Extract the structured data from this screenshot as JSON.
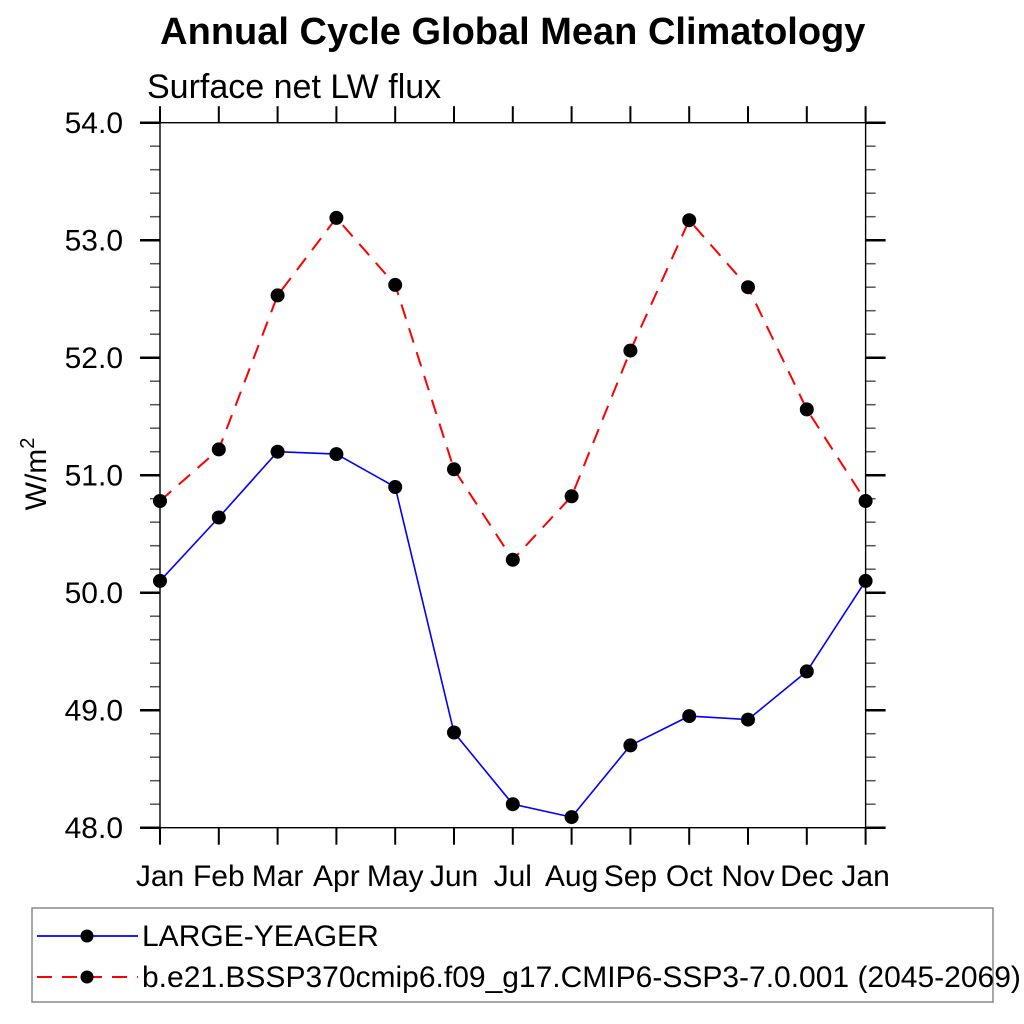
{
  "chart_data": {
    "type": "line",
    "title": "Annual Cycle Global Mean Climatology",
    "subtitle": "Surface net LW flux",
    "ylabel_base": "W/m",
    "ylabel_exp": "2",
    "categories": [
      "Jan",
      "Feb",
      "Mar",
      "Apr",
      "May",
      "Jun",
      "Jul",
      "Aug",
      "Sep",
      "Oct",
      "Nov",
      "Dec",
      "Jan"
    ],
    "ylim": [
      48.0,
      54.0
    ],
    "ytick_major_step": 1.0,
    "ytick_minor_step": 0.2,
    "ytick_labels": [
      "48.0",
      "49.0",
      "50.0",
      "51.0",
      "52.0",
      "53.0",
      "54.0"
    ],
    "grid": false,
    "legend_position": "bottom",
    "series": [
      {
        "name": "LARGE-YEAGER",
        "color": "#0000ff",
        "line_style": "solid",
        "marker": "black-circle",
        "values": [
          50.1,
          50.64,
          51.2,
          51.18,
          50.9,
          48.81,
          48.2,
          48.09,
          48.7,
          48.95,
          48.92,
          49.33,
          50.1
        ]
      },
      {
        "name": "b.e21.BSSP370cmip6.f09_g17.CMIP6-SSP3-7.0.001 (2045-2069)",
        "color": "#ff0000",
        "line_style": "dashed",
        "marker": "black-circle",
        "values": [
          50.78,
          51.22,
          52.53,
          53.19,
          52.62,
          51.05,
          50.28,
          50.82,
          52.06,
          53.17,
          52.6,
          51.56,
          50.78
        ]
      }
    ],
    "colors": {
      "axis": "#000000",
      "minor_tick": "#555555",
      "legend_border": "#888888",
      "marker": "#000000"
    }
  }
}
